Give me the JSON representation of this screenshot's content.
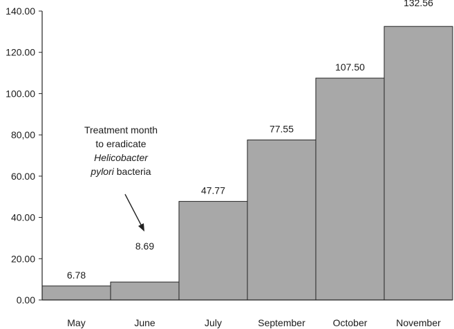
{
  "chart_data": {
    "type": "bar",
    "title": "",
    "xlabel": "",
    "ylabel": "",
    "ylim": [
      0,
      140
    ],
    "grid": false,
    "categories": [
      "May",
      "June",
      "July",
      "September",
      "October",
      "November"
    ],
    "values": [
      6.78,
      8.69,
      47.77,
      77.55,
      107.5,
      132.56
    ],
    "value_labels": [
      "6.78",
      "8.69",
      "47.77",
      "77.55",
      "107.50",
      "132.56"
    ],
    "y_ticks": [
      0,
      20,
      40,
      60,
      80,
      100,
      120,
      140
    ],
    "y_tick_labels": [
      "0.00",
      "20.00",
      "40.00",
      "60.00",
      "80,00",
      "100.00",
      "120.00",
      "140.00"
    ],
    "annotation": {
      "line1": "Treatment month",
      "line2": "to eradicate",
      "line3_italic": "Helicobacter",
      "line4_italic": "pylori",
      "line4_rest": " bacteria",
      "points_to_category": "June"
    },
    "colors": {
      "bar_fill": "#a8a8a8",
      "bar_stroke": "#222222",
      "axis": "#222222"
    }
  }
}
